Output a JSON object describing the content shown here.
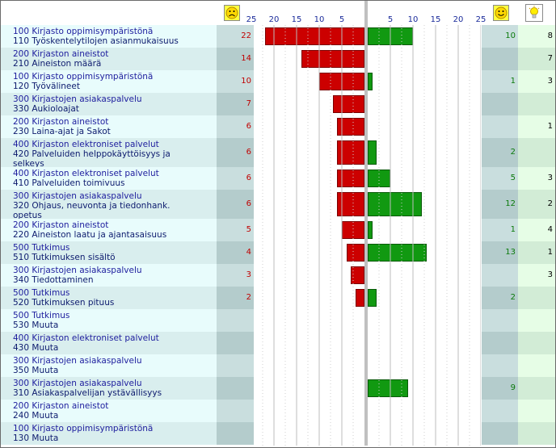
{
  "header": {
    "sad_icon": "sad-face-icon",
    "happy_icon": "happy-face-icon",
    "idea_icon": "lightbulb-icon"
  },
  "colors": {
    "negative": "#cc0000",
    "positive": "#119911",
    "row_light": "#e8fcfc",
    "row_dark": "#d9eeee",
    "neg_col_light": "#c9dede",
    "neg_col_dark": "#b4cccc",
    "idea_col_light": "#e6fde6",
    "idea_col_dark": "#d2ecd6"
  },
  "chart_data": {
    "type": "bar",
    "x_ticks_left": [
      "25",
      "20",
      "15",
      "10",
      "5"
    ],
    "x_ticks_right": [
      "5",
      "10",
      "15",
      "20",
      "25"
    ],
    "xlim": [
      0,
      25
    ],
    "rows": [
      {
        "l1": "100 Kirjasto oppimisympäristönä",
        "l2": "110 Työskentelytilojen asianmukaisuus",
        "l3": "",
        "neg": 22,
        "pos": 10,
        "idea": 8
      },
      {
        "l1": "200 Kirjaston aineistot",
        "l2": "210 Aineiston määrä",
        "l3": "",
        "neg": 14,
        "pos": null,
        "idea": 7
      },
      {
        "l1": "100 Kirjasto oppimisympäristönä",
        "l2": "120 Työvälineet",
        "l3": "",
        "neg": 10,
        "pos": 1,
        "idea": 3
      },
      {
        "l1": "300 Kirjastojen asiakaspalvelu",
        "l2": "330 Aukioloajat",
        "l3": "",
        "neg": 7,
        "pos": null,
        "idea": null
      },
      {
        "l1": "200 Kirjaston aineistot",
        "l2": "230 Laina-ajat ja Sakot",
        "l3": "",
        "neg": 6,
        "pos": null,
        "idea": 1
      },
      {
        "l1": "400 Kirjaston elektroniset palvelut",
        "l2": "420 Palveluiden helppokäyttöisyys ja",
        "l3": "selkeys",
        "neg": 6,
        "pos": 2,
        "idea": null,
        "tall": true
      },
      {
        "l1": "400 Kirjaston elektroniset palvelut",
        "l2": "410 Palveluiden toimivuus",
        "l3": "",
        "neg": 6,
        "pos": 5,
        "idea": 3
      },
      {
        "l1": "300 Kirjastojen asiakaspalvelu",
        "l2": "320 Ohjaus, neuvonta ja tiedonhank.",
        "l3": "opetus",
        "neg": 6,
        "pos": 12,
        "idea": 2,
        "tall": true
      },
      {
        "l1": "200 Kirjaston aineistot",
        "l2": "220 Aineiston laatu ja ajantasaisuus",
        "l3": "",
        "neg": 5,
        "pos": 1,
        "idea": 4
      },
      {
        "l1": "500 Tutkimus",
        "l2": "510 Tutkimuksen sisältö",
        "l3": "",
        "neg": 4,
        "pos": 13,
        "idea": 1
      },
      {
        "l1": "300 Kirjastojen asiakaspalvelu",
        "l2": "340 Tiedottaminen",
        "l3": "",
        "neg": 3,
        "pos": null,
        "idea": 3
      },
      {
        "l1": "500 Tutkimus",
        "l2": "520 Tutkimuksen pituus",
        "l3": "",
        "neg": 2,
        "pos": 2,
        "idea": null
      },
      {
        "l1": "500 Tutkimus",
        "l2": "530 Muuta",
        "l3": "",
        "neg": null,
        "pos": null,
        "idea": null
      },
      {
        "l1": "400 Kirjaston elektroniset palvelut",
        "l2": "430 Muuta",
        "l3": "",
        "neg": null,
        "pos": null,
        "idea": null
      },
      {
        "l1": "300 Kirjastojen asiakaspalvelu",
        "l2": "350 Muuta",
        "l3": "",
        "neg": null,
        "pos": null,
        "idea": null
      },
      {
        "l1": "300 Kirjastojen asiakaspalvelu",
        "l2": "310 Asiakaspalvelijan ystävällisyys",
        "l3": "",
        "neg": null,
        "pos": 9,
        "idea": null
      },
      {
        "l1": "200 Kirjaston aineistot",
        "l2": "240 Muuta",
        "l3": "",
        "neg": null,
        "pos": null,
        "idea": null
      },
      {
        "l1": "100 Kirjasto oppimisympäristönä",
        "l2": "130 Muuta",
        "l3": "",
        "neg": null,
        "pos": null,
        "idea": null
      }
    ]
  }
}
